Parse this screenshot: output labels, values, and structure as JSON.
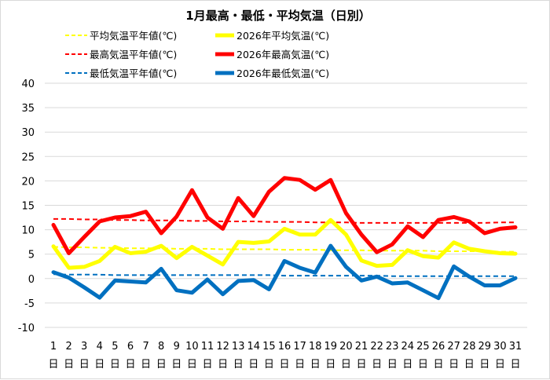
{
  "chart_data": {
    "type": "line",
    "title": "1月最高・最低・平均気温（日別）",
    "ylim": [
      -10,
      40
    ],
    "yticks": [
      -10,
      -5,
      0,
      5,
      10,
      15,
      20,
      25,
      30,
      35,
      40
    ],
    "grid": true,
    "legend_position": "top",
    "categories": [
      "1",
      "2",
      "3",
      "4",
      "5",
      "6",
      "7",
      "8",
      "9",
      "10",
      "11",
      "12",
      "13",
      "14",
      "15",
      "16",
      "17",
      "18",
      "19",
      "20",
      "21",
      "22",
      "23",
      "24",
      "25",
      "26",
      "27",
      "28",
      "29",
      "30",
      "31"
    ],
    "category_suffix": "日",
    "series": [
      {
        "key": "avg_normal",
        "name": "平均気温平年値(℃)",
        "color": "#ffff00",
        "dashed": true,
        "width": 2,
        "values": [
          6.5,
          6.4,
          6.4,
          6.3,
          6.3,
          6.2,
          6.2,
          6.2,
          6.1,
          6.1,
          6.1,
          6.0,
          6.0,
          6.0,
          6.0,
          5.9,
          5.9,
          5.9,
          5.8,
          5.8,
          5.8,
          5.7,
          5.7,
          5.7,
          5.7,
          5.6,
          5.6,
          5.6,
          5.6,
          5.5,
          5.5
        ]
      },
      {
        "key": "avg_2026",
        "name": "2026年平均気温(℃)",
        "color": "#ffff00",
        "dashed": false,
        "width": 5,
        "values": [
          6.6,
          2.2,
          2.4,
          3.6,
          6.5,
          5.2,
          5.5,
          6.7,
          4.2,
          6.5,
          4.7,
          2.9,
          7.5,
          7.3,
          7.6,
          10.2,
          9.0,
          9.0,
          12.0,
          9.0,
          3.7,
          2.6,
          2.8,
          5.8,
          4.6,
          4.3,
          7.4,
          6.1,
          5.6,
          5.2,
          5.1
        ]
      },
      {
        "key": "max_normal",
        "name": "最高気温平年値(℃)",
        "color": "#ff0000",
        "dashed": true,
        "width": 2,
        "values": [
          12.2,
          12.2,
          12.1,
          12.1,
          12.0,
          12.0,
          11.9,
          11.9,
          11.9,
          11.8,
          11.8,
          11.7,
          11.7,
          11.7,
          11.6,
          11.6,
          11.6,
          11.5,
          11.5,
          11.5,
          11.4,
          11.4,
          11.4,
          11.4,
          11.4,
          11.4,
          11.4,
          11.4,
          11.4,
          11.5,
          11.5
        ]
      },
      {
        "key": "max_2026",
        "name": "2026年最高気温(℃)",
        "color": "#ff0000",
        "dashed": false,
        "width": 5,
        "values": [
          11.0,
          5.2,
          8.5,
          11.7,
          12.5,
          12.8,
          13.7,
          9.3,
          12.7,
          18.1,
          12.5,
          10.2,
          16.5,
          12.8,
          17.8,
          20.6,
          20.2,
          18.2,
          20.2,
          13.4,
          9.0,
          5.4,
          7.0,
          10.7,
          8.5,
          12.0,
          12.6,
          11.7,
          9.3,
          10.2,
          10.5
        ]
      },
      {
        "key": "min_normal",
        "name": "最低気温平年値(℃)",
        "color": "#0070c0",
        "dashed": true,
        "width": 2,
        "values": [
          0.9,
          0.8,
          0.8,
          0.8,
          0.7,
          0.7,
          0.7,
          0.7,
          0.7,
          0.7,
          0.7,
          0.7,
          0.7,
          0.7,
          0.7,
          0.6,
          0.6,
          0.6,
          0.6,
          0.6,
          0.6,
          0.6,
          0.5,
          0.5,
          0.5,
          0.5,
          0.5,
          0.5,
          0.5,
          0.5,
          0.5
        ]
      },
      {
        "key": "min_2026",
        "name": "2026年最低気温(℃)",
        "color": "#0070c0",
        "dashed": false,
        "width": 5,
        "values": [
          1.3,
          0.2,
          -1.8,
          -3.9,
          -0.4,
          -0.6,
          -0.8,
          2.0,
          -2.4,
          -2.9,
          -0.2,
          -3.2,
          -0.5,
          -0.3,
          -2.2,
          3.6,
          2.2,
          1.2,
          6.7,
          2.4,
          -0.4,
          0.4,
          -1.0,
          -0.8,
          -2.4,
          -4.0,
          2.5,
          0.4,
          -1.4,
          -1.4,
          0.1
        ]
      }
    ]
  }
}
